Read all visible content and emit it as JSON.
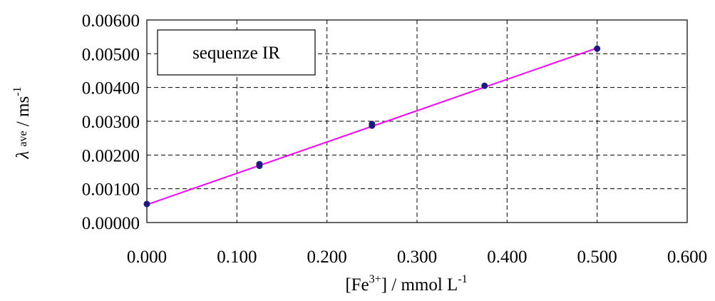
{
  "chart_data": {
    "type": "scatter",
    "title": "",
    "legend_box_label": "sequenze IR",
    "xlabel": {
      "main": "[Fe",
      "sup": "3+",
      "rest": "] / mmol L",
      "sup2": "-1"
    },
    "ylabel": {
      "symbol": "λ",
      "sub": "ave",
      "rest": " / ms",
      "sup": "-1"
    },
    "xlim": [
      0,
      0.6
    ],
    "ylim": [
      0,
      0.006
    ],
    "x_ticks": [
      "0.000",
      "0.100",
      "0.200",
      "0.300",
      "0.400",
      "0.500",
      "0.600"
    ],
    "y_ticks": [
      "0.00000",
      "0.00100",
      "0.00200",
      "0.00300",
      "0.00400",
      "0.00500",
      "0.00600"
    ],
    "grid": true,
    "series": [
      {
        "x": [
          0.0,
          0.125,
          0.125,
          0.25,
          0.25,
          0.375,
          0.5
        ],
        "y": [
          0.00055,
          0.00168,
          0.00173,
          0.00287,
          0.00292,
          0.00405,
          0.00515
        ],
        "marker_color": "#1a1a80"
      }
    ],
    "fit_line": {
      "x": [
        0.0,
        0.5
      ],
      "y": [
        0.00053,
        0.00517
      ],
      "color": "#ff00ff"
    }
  }
}
